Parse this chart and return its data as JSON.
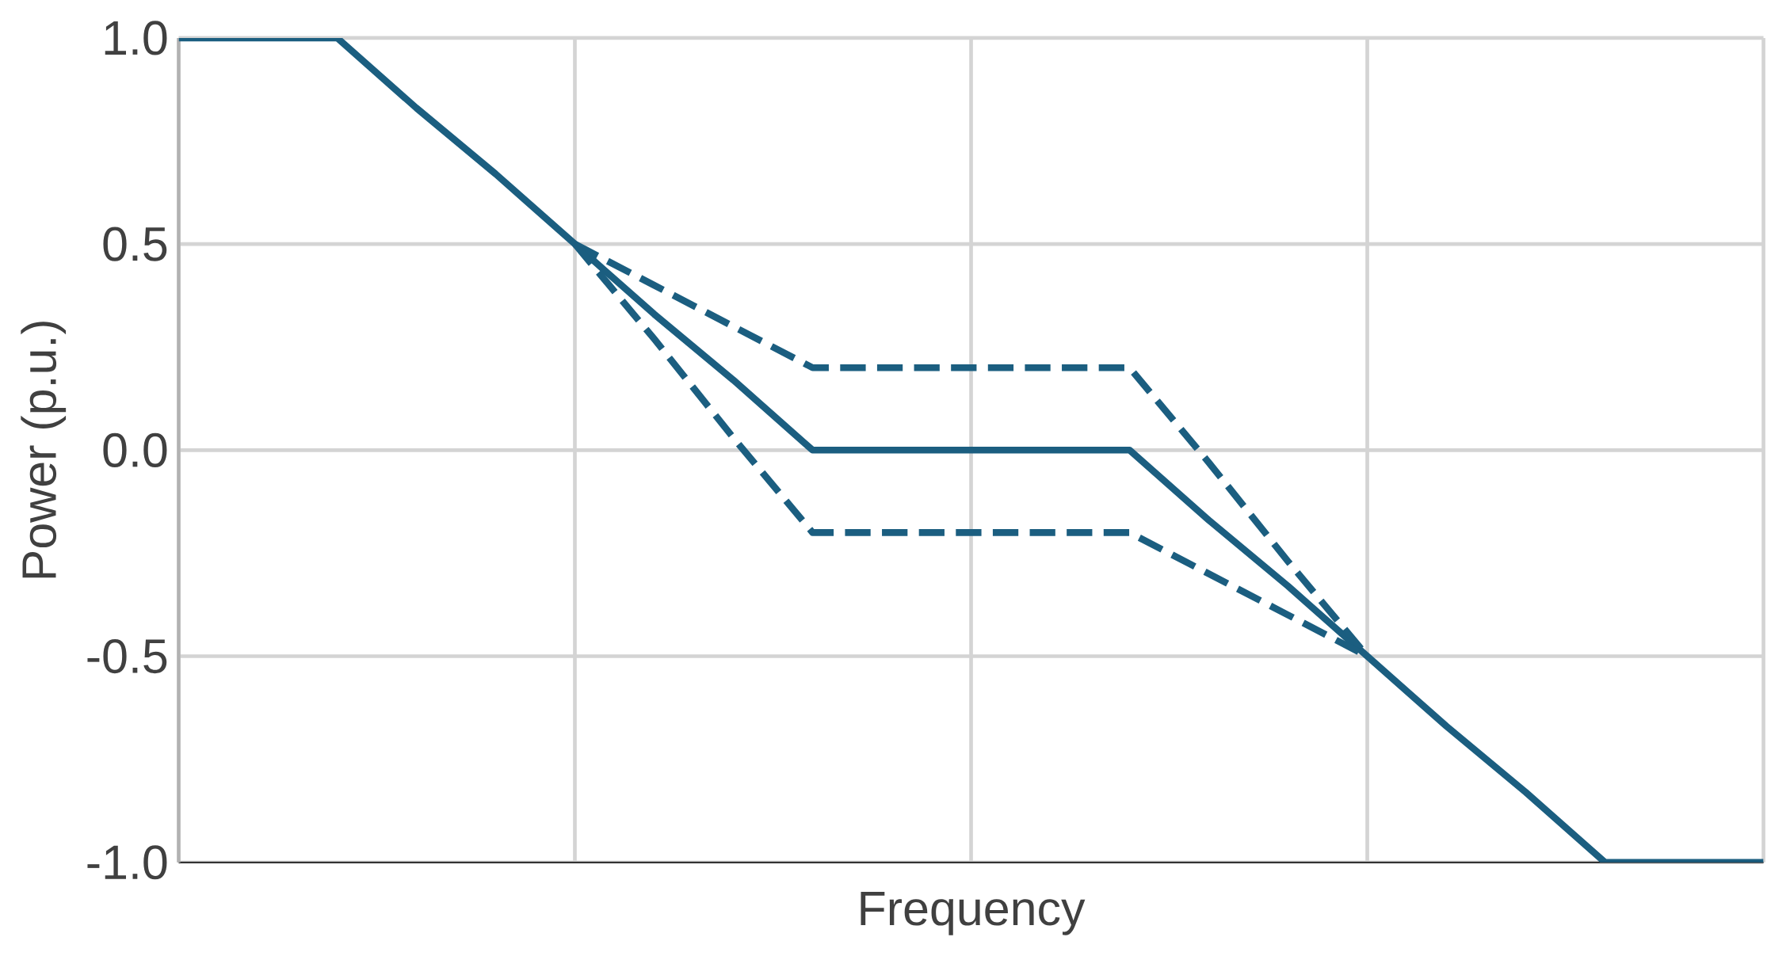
{
  "chart_data": {
    "type": "line",
    "xlabel": "Frequency",
    "ylabel": "Power (p.u.)",
    "categories": [
      null,
      null,
      null,
      null,
      null,
      null,
      null,
      null,
      null,
      null,
      null,
      null,
      null,
      null,
      null,
      null,
      null,
      null,
      null,
      null,
      null
    ],
    "ylim": [
      -1,
      1
    ],
    "yticks": [
      {
        "value": -1,
        "label": "-1.0"
      },
      {
        "value": -0.5,
        "label": "-0.5"
      },
      {
        "value": 0,
        "label": "0.0"
      },
      {
        "value": 0.5,
        "label": "0.5"
      },
      {
        "value": 1,
        "label": "1.0"
      }
    ],
    "grid": true,
    "series": [
      {
        "color": "#1b5e80",
        "line_style": "solid",
        "values": [
          1,
          1,
          1,
          0.83,
          0.67,
          0.5,
          0.33,
          0.17,
          0,
          0,
          0,
          0,
          0,
          -0.17,
          -0.33,
          -0.5,
          -0.67,
          -0.83,
          -1,
          -1,
          -1
        ]
      },
      {
        "color": "#1b5e80",
        "line_style": "dashed",
        "values": [
          null,
          null,
          null,
          null,
          null,
          0.5,
          0.4,
          0.3,
          0.2,
          0.2,
          0.2,
          0.2,
          0.2,
          -0.03,
          -0.27,
          -0.5,
          null,
          null,
          null,
          null,
          null
        ]
      },
      {
        "color": "#1b5e80",
        "line_style": "dashed",
        "values": [
          null,
          null,
          null,
          null,
          null,
          0.5,
          0.27,
          0.03,
          -0.2,
          -0.2,
          -0.2,
          -0.2,
          -0.2,
          -0.3,
          -0.4,
          -0.5,
          null,
          null,
          null,
          null,
          null
        ]
      }
    ]
  }
}
